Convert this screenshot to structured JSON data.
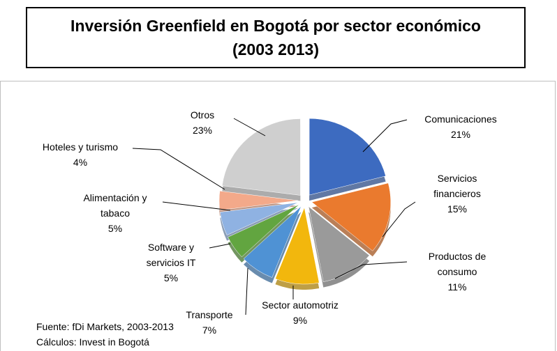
{
  "chart_data": {
    "type": "pie",
    "title": "Inversión Greenfield en Bogotá por sector económico (2003 2013)",
    "categories": [
      "Comunicaciones",
      "Servicios financieros",
      "Productos de consumo",
      "Sector automotriz",
      "Transporte",
      "Software y servicios IT",
      "Alimentación y tabaco",
      "Hoteles y turismo",
      "Otros"
    ],
    "values": [
      21,
      15,
      11,
      9,
      7,
      5,
      5,
      4,
      23
    ],
    "value_labels": [
      "21%",
      "15%",
      "11%",
      "9%",
      "7%",
      "5%",
      "5%",
      "4%",
      "23%"
    ],
    "colors": [
      "#3d6bc0",
      "#ea7a2e",
      "#9a9a9a",
      "#f2b70d",
      "#4f92d4",
      "#62a540",
      "#8fb2e2",
      "#f3a98a",
      "#cfcfcf"
    ],
    "notes": [
      "Fuente: fDi Markets, 2003-2013",
      "Cálculos: Invest in Bogotá"
    ]
  }
}
